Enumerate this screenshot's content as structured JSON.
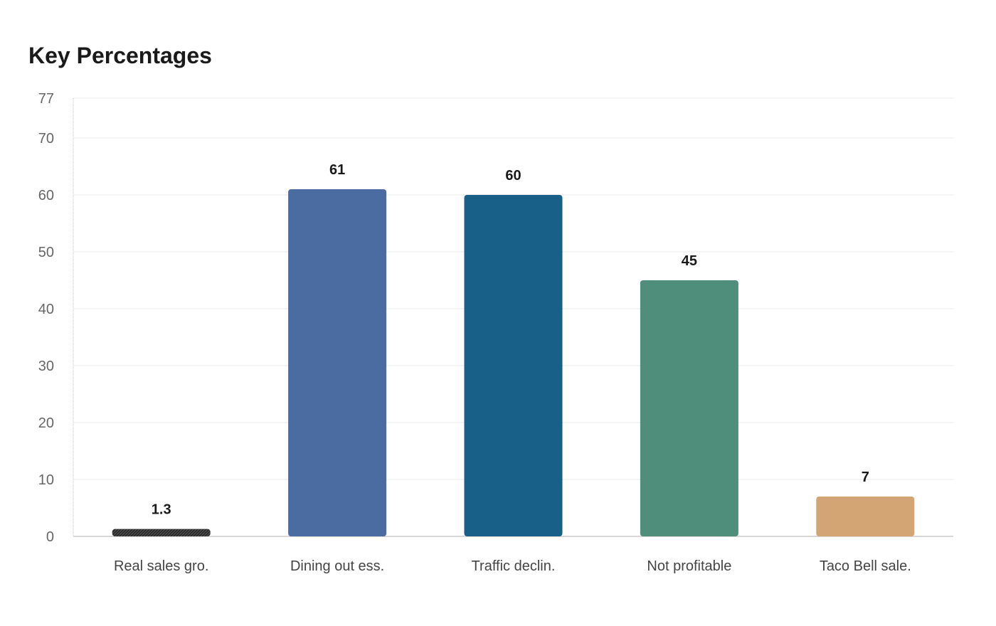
{
  "chart_data": {
    "type": "bar",
    "title": "Key Percentages",
    "xlabel": "",
    "ylabel": "",
    "categories": [
      "Real sales gro.",
      "Dining out ess.",
      "Traffic declin.",
      "Not profitable",
      "Taco Bell sale."
    ],
    "values": [
      1.3,
      61,
      60,
      45,
      7
    ],
    "value_labels": [
      "1.3",
      "61",
      "60",
      "45",
      "7"
    ],
    "colors": [
      "#2b2b2b",
      "#4a6ca0",
      "#186087",
      "#4e8e7b",
      "#d4a574"
    ],
    "ylim": [
      0,
      77
    ],
    "yticks": [
      0,
      10,
      20,
      30,
      40,
      50,
      60,
      70,
      77
    ],
    "grid": true,
    "legend": "none"
  }
}
